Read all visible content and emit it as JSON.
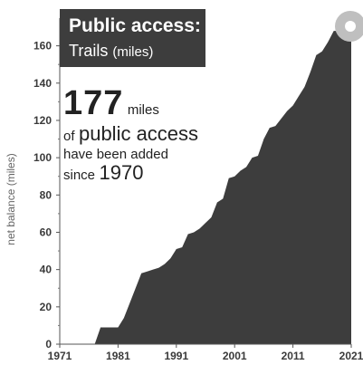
{
  "title": {
    "main": "Public access:",
    "sub": "Trails",
    "unit": "(miles)"
  },
  "callout": {
    "number": "177",
    "unit": "miles",
    "line2_small": "of",
    "line2_big": "public access",
    "line3": "have been added",
    "line4_small": "since",
    "line4_big": "1970"
  },
  "icons": {
    "corner": "circle-badge-icon"
  },
  "chart_data": {
    "type": "area",
    "title": "Public access: Trails (miles)",
    "xlabel": "",
    "ylabel": "net balance (miles)",
    "xlim": [
      1971,
      2021
    ],
    "ylim": [
      0,
      170
    ],
    "xticks": [
      1971,
      1981,
      1991,
      2001,
      2011,
      2021
    ],
    "yticks": [
      0,
      20,
      40,
      60,
      80,
      100,
      120,
      140,
      160
    ],
    "grid": false,
    "color": "#3d3d3d",
    "series": [
      {
        "x": [
          1971,
          1977,
          1978,
          1981,
          1982,
          1983,
          1984,
          1985,
          1986,
          1987,
          1988,
          1989,
          1990,
          1991,
          1992,
          1993,
          1994,
          1995,
          1996,
          1997,
          1998,
          1999,
          2000,
          2001,
          2002,
          2003,
          2004,
          2005,
          2006,
          2007,
          2008,
          2009,
          2010,
          2011,
          2012,
          2013,
          2014,
          2015,
          2016,
          2017,
          2018,
          2019,
          2020,
          2021
        ],
        "y": [
          0,
          0,
          9,
          9,
          14,
          22,
          30,
          38,
          39,
          40,
          41,
          43,
          46,
          51,
          52,
          59,
          60,
          62,
          65,
          68,
          76,
          78,
          89,
          90,
          93,
          95,
          100,
          101,
          110,
          116,
          117,
          121,
          125,
          128,
          133,
          138,
          146,
          155,
          157,
          162,
          168,
          168,
          168,
          168
        ]
      }
    ]
  }
}
